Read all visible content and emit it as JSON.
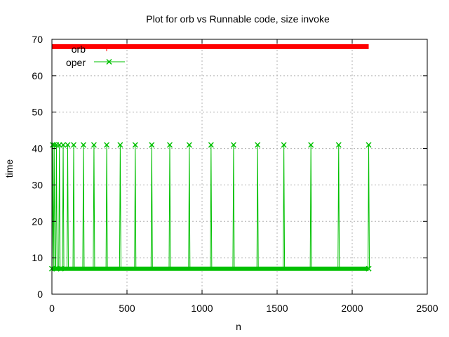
{
  "chart_data": {
    "type": "line",
    "title": "Plot for orb vs Runnable code, size invoke",
    "xlabel": "n",
    "ylabel": "time",
    "xlim": [
      0,
      2500
    ],
    "ylim": [
      0,
      70
    ],
    "xticks": [
      0,
      500,
      1000,
      1500,
      2000,
      2500
    ],
    "yticks": [
      0,
      10,
      20,
      30,
      40,
      50,
      60,
      70
    ],
    "grid": true,
    "legend_position": "top-left",
    "series": [
      {
        "name": "orb",
        "color": "#ff0000",
        "marker": "plus",
        "x": [
          0,
          2110
        ],
        "y": [
          68,
          68
        ]
      },
      {
        "name": "oper",
        "color": "#00c000",
        "marker": "x",
        "baseline": 7,
        "peak": 41,
        "x_range": [
          0,
          2110
        ],
        "spike_x": [
          5,
          15,
          30,
          50,
          75,
          105,
          145,
          210,
          280,
          365,
          455,
          555,
          665,
          785,
          915,
          1060,
          1210,
          1370,
          1545,
          1725,
          1910,
          2110
        ]
      }
    ]
  }
}
